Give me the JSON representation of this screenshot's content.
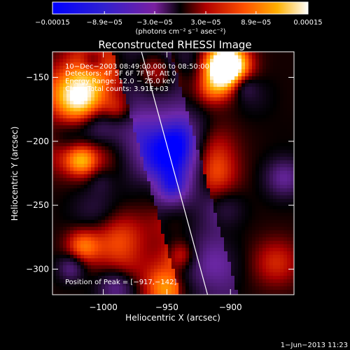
{
  "chart_data": {
    "type": "heatmap",
    "title": "Reconstructed RHESSI Image",
    "xlabel": "Heliocentric X (arcsec)",
    "ylabel": "Heliocentric Y (arcsec)",
    "xlim": [
      -1040,
      -850
    ],
    "ylim": [
      -320,
      -130
    ],
    "x_ticks": [
      {
        "value": -1000,
        "label": "−1000"
      },
      {
        "value": -950,
        "label": "−950"
      },
      {
        "value": -900,
        "label": "−900"
      }
    ],
    "y_ticks": [
      {
        "value": -150,
        "label": "−150"
      },
      {
        "value": -200,
        "label": "−200"
      },
      {
        "value": -250,
        "label": "−250"
      },
      {
        "value": -300,
        "label": "−300"
      }
    ],
    "colorbar": {
      "range": [
        -0.00015,
        0.00015
      ],
      "ticks": [
        {
          "value": -0.00015,
          "label": "−0.00015"
        },
        {
          "value": -8.9e-05,
          "label": "−8.9e−05"
        },
        {
          "value": -3e-05,
          "label": "−3.0e−05"
        },
        {
          "value": 3e-05,
          "label": "3.0e−05"
        },
        {
          "value": 8.9e-05,
          "label": "8.9e−05"
        },
        {
          "value": 0.00015,
          "label": "0.00015"
        }
      ],
      "unit_label": "(photons cm⁻² s⁻¹ asec⁻²)"
    },
    "annotations": {
      "time_range": "10−Dec−2003 08:49:00.000 to 08:50:00.000",
      "detectors": "Detectors: 4F 5F 6F 7F 8F, Att 0",
      "energy": "Energy Range: 12.0 − 25.0 keV",
      "method": "Clean     Total counts: 3.91E+03",
      "peak": "Position of Peak = [−917,−142]"
    },
    "limb_line": [
      [
        -970,
        -130
      ],
      [
        -918,
        -320
      ]
    ],
    "footer_date": "1−Jun−2013 11:23",
    "colors": {
      "line": "#ffffff",
      "background": "#000000"
    }
  }
}
